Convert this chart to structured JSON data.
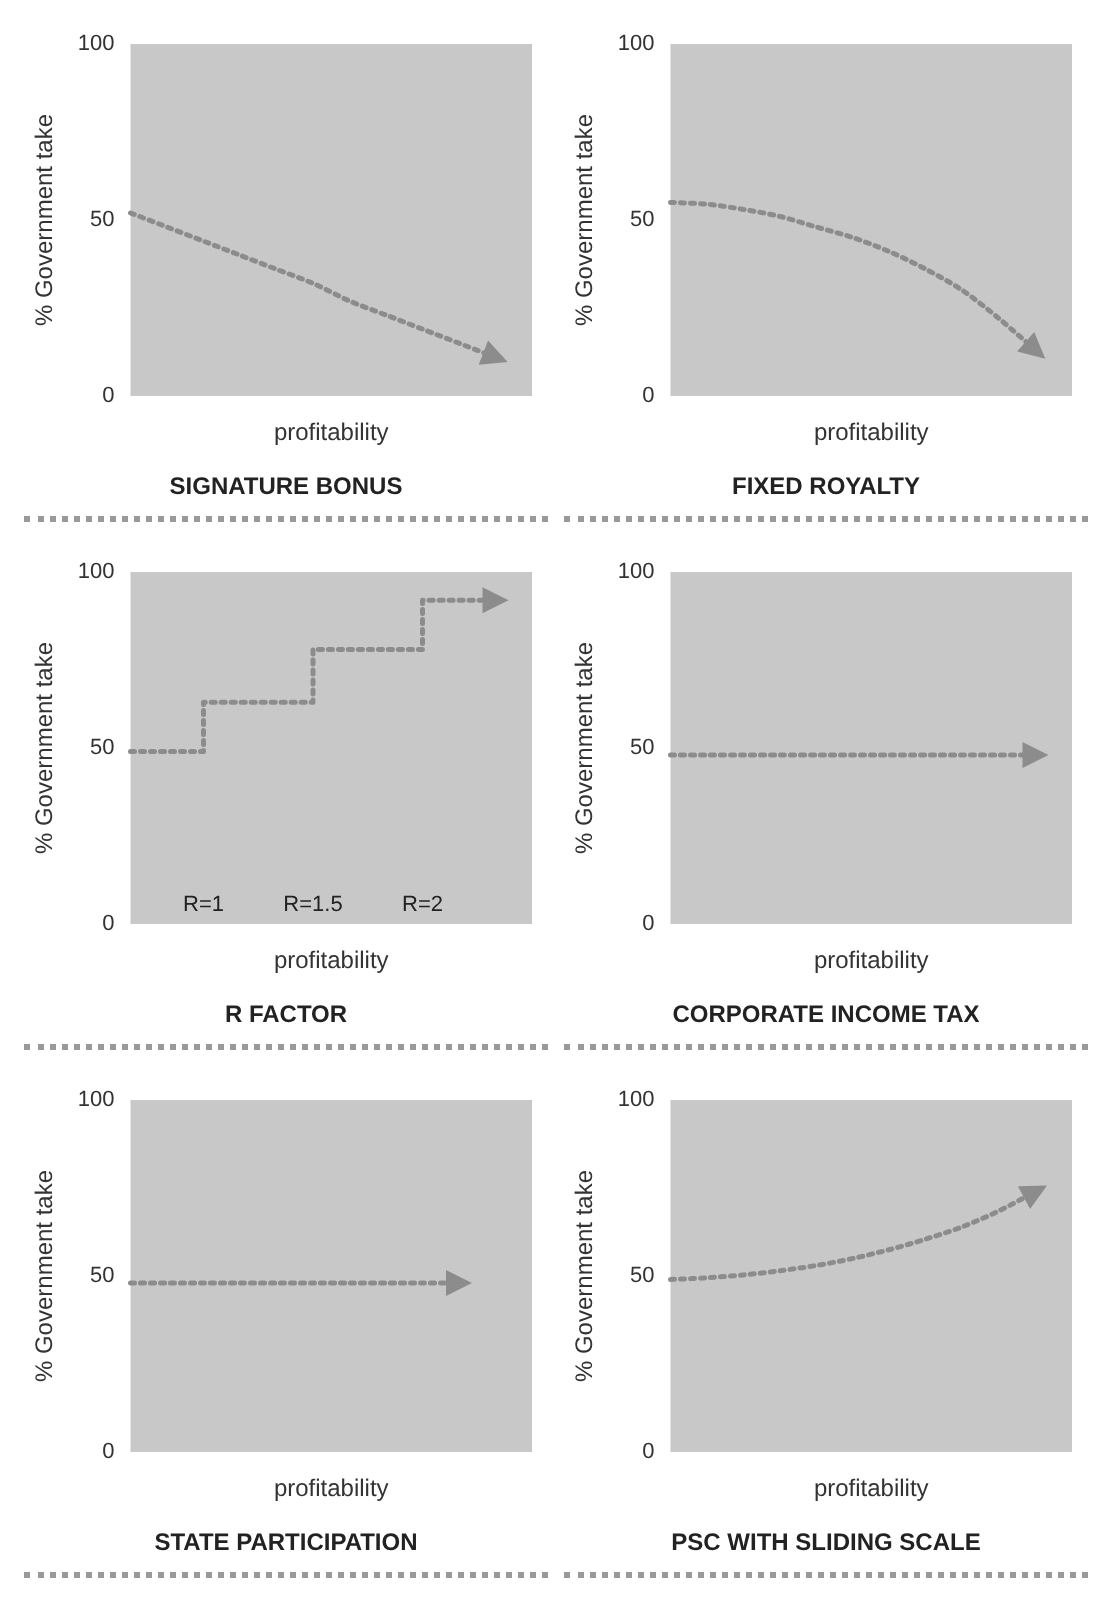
{
  "chart_data": [
    {
      "type": "line",
      "title": "SIGNATURE BONUS",
      "xlabel": "profitability",
      "ylabel": "% Government take",
      "categories": [
        null,
        null,
        null,
        null,
        null,
        null,
        null,
        null,
        null,
        null,
        null,
        null
      ],
      "values": [
        52,
        48,
        44,
        40,
        36,
        32,
        27,
        23,
        19,
        15,
        11,
        null
      ],
      "color": "#8c8c8c",
      "ylim": [
        0,
        100
      ],
      "yticks": [
        0,
        50,
        100
      ],
      "tick_labels": "y",
      "line_style": "dotted"
    },
    {
      "type": "line",
      "title": "FIXED ROYALTY",
      "xlabel": "profitability",
      "ylabel": "% Government take",
      "categories": [
        null,
        null,
        null,
        null,
        null,
        null,
        null,
        null,
        null,
        null,
        null,
        null
      ],
      "values": [
        55,
        54.5,
        53,
        51,
        48,
        45,
        41,
        36,
        30,
        22,
        13,
        null
      ],
      "color": "#8c8c8c",
      "ylim": [
        0,
        100
      ],
      "yticks": [
        0,
        50,
        100
      ],
      "tick_labels": "y",
      "line_style": "dotted"
    },
    {
      "type": "step",
      "title": "R FACTOR",
      "xlabel": "profitability",
      "ylabel": "% Government take",
      "categories": [
        null,
        null,
        null,
        null,
        null,
        null,
        null,
        null,
        null,
        null,
        null,
        null
      ],
      "values": [
        49,
        49,
        49,
        63,
        63,
        63,
        78,
        78,
        78,
        92,
        92,
        null
      ],
      "color": "#8c8c8c",
      "ylim": [
        0,
        100
      ],
      "yticks": [
        0,
        50,
        100
      ],
      "tick_labels": "y",
      "line_style": "dotted",
      "annotations": [
        "R=1",
        "R=1.5",
        "R=2"
      ]
    },
    {
      "type": "line",
      "title": "CORPORATE INCOME TAX",
      "xlabel": "profitability",
      "ylabel": "% Government take",
      "categories": [
        null,
        null,
        null,
        null,
        null,
        null,
        null,
        null,
        null,
        null,
        null,
        null
      ],
      "values": [
        48,
        48,
        48,
        48,
        48,
        48,
        48,
        48,
        48,
        48,
        48,
        null
      ],
      "color": "#8c8c8c",
      "ylim": [
        0,
        100
      ],
      "yticks": [
        0,
        50,
        100
      ],
      "tick_labels": "y",
      "line_style": "dotted"
    },
    {
      "type": "line",
      "title": "STATE PARTICIPATION",
      "xlabel": "profitability",
      "ylabel": "% Government take",
      "categories": [
        null,
        null,
        null,
        null,
        null,
        null,
        null,
        null,
        null,
        null,
        null,
        null
      ],
      "values": [
        48,
        48,
        48,
        48,
        48,
        48,
        48,
        48,
        48,
        48,
        null,
        null
      ],
      "color": "#8c8c8c",
      "ylim": [
        0,
        100
      ],
      "yticks": [
        0,
        50,
        100
      ],
      "tick_labels": "y",
      "line_style": "dotted"
    },
    {
      "type": "line",
      "title": "PSC WITH SLIDING SCALE",
      "xlabel": "profitability",
      "ylabel": "% Government take",
      "categories": [
        null,
        null,
        null,
        null,
        null,
        null,
        null,
        null,
        null,
        null,
        null,
        null
      ],
      "values": [
        49,
        49.5,
        50.3,
        51.5,
        53,
        55,
        57.5,
        60.5,
        64,
        68.5,
        74,
        null
      ],
      "color": "#8c8c8c",
      "ylim": [
        0,
        100
      ],
      "yticks": [
        0,
        50,
        100
      ],
      "tick_labels": "y",
      "line_style": "dotted"
    }
  ]
}
